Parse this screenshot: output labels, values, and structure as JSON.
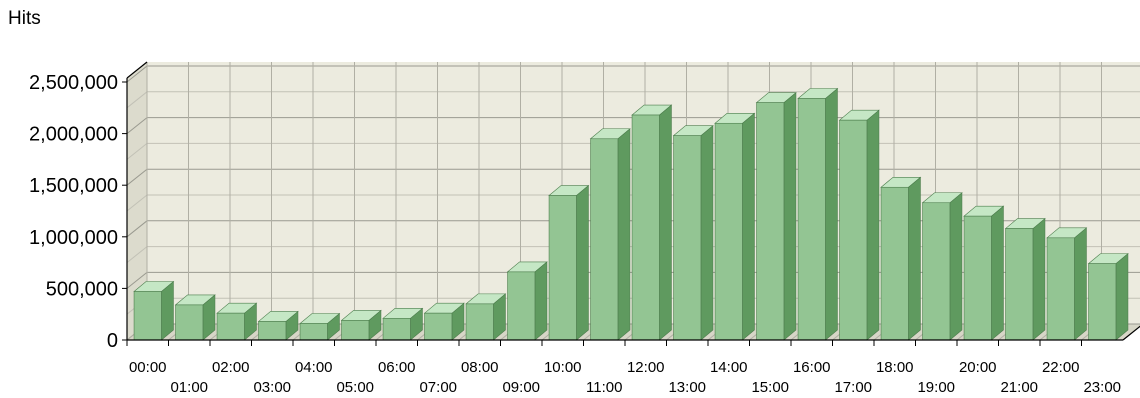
{
  "chart_data": {
    "type": "bar",
    "title": "Hits",
    "xlabel": "",
    "ylabel": "",
    "ylim": [
      0,
      2500000
    ],
    "yticks": [
      "0",
      "500,000",
      "1,000,000",
      "1,500,000",
      "2,000,000",
      "2,500,000"
    ],
    "ytick_values": [
      0,
      500000,
      1000000,
      1500000,
      2000000,
      2500000
    ],
    "grid": true,
    "legend": "none",
    "categories": [
      "00:00",
      "01:00",
      "02:00",
      "03:00",
      "04:00",
      "05:00",
      "06:00",
      "07:00",
      "08:00",
      "09:00",
      "10:00",
      "11:00",
      "12:00",
      "13:00",
      "14:00",
      "15:00",
      "16:00",
      "17:00",
      "18:00",
      "19:00",
      "20:00",
      "21:00",
      "22:00",
      "23:00"
    ],
    "values": [
      470000,
      340000,
      260000,
      180000,
      160000,
      190000,
      210000,
      260000,
      350000,
      660000,
      1400000,
      1950000,
      2180000,
      1980000,
      2100000,
      2300000,
      2340000,
      2130000,
      1480000,
      1330000,
      1200000,
      1080000,
      990000,
      740000
    ],
    "colors": {
      "bar_front": "#93c593",
      "bar_side": "#5f9a5f",
      "bar_top": "#c5e7c5",
      "wall": "#ecebdf"
    }
  }
}
